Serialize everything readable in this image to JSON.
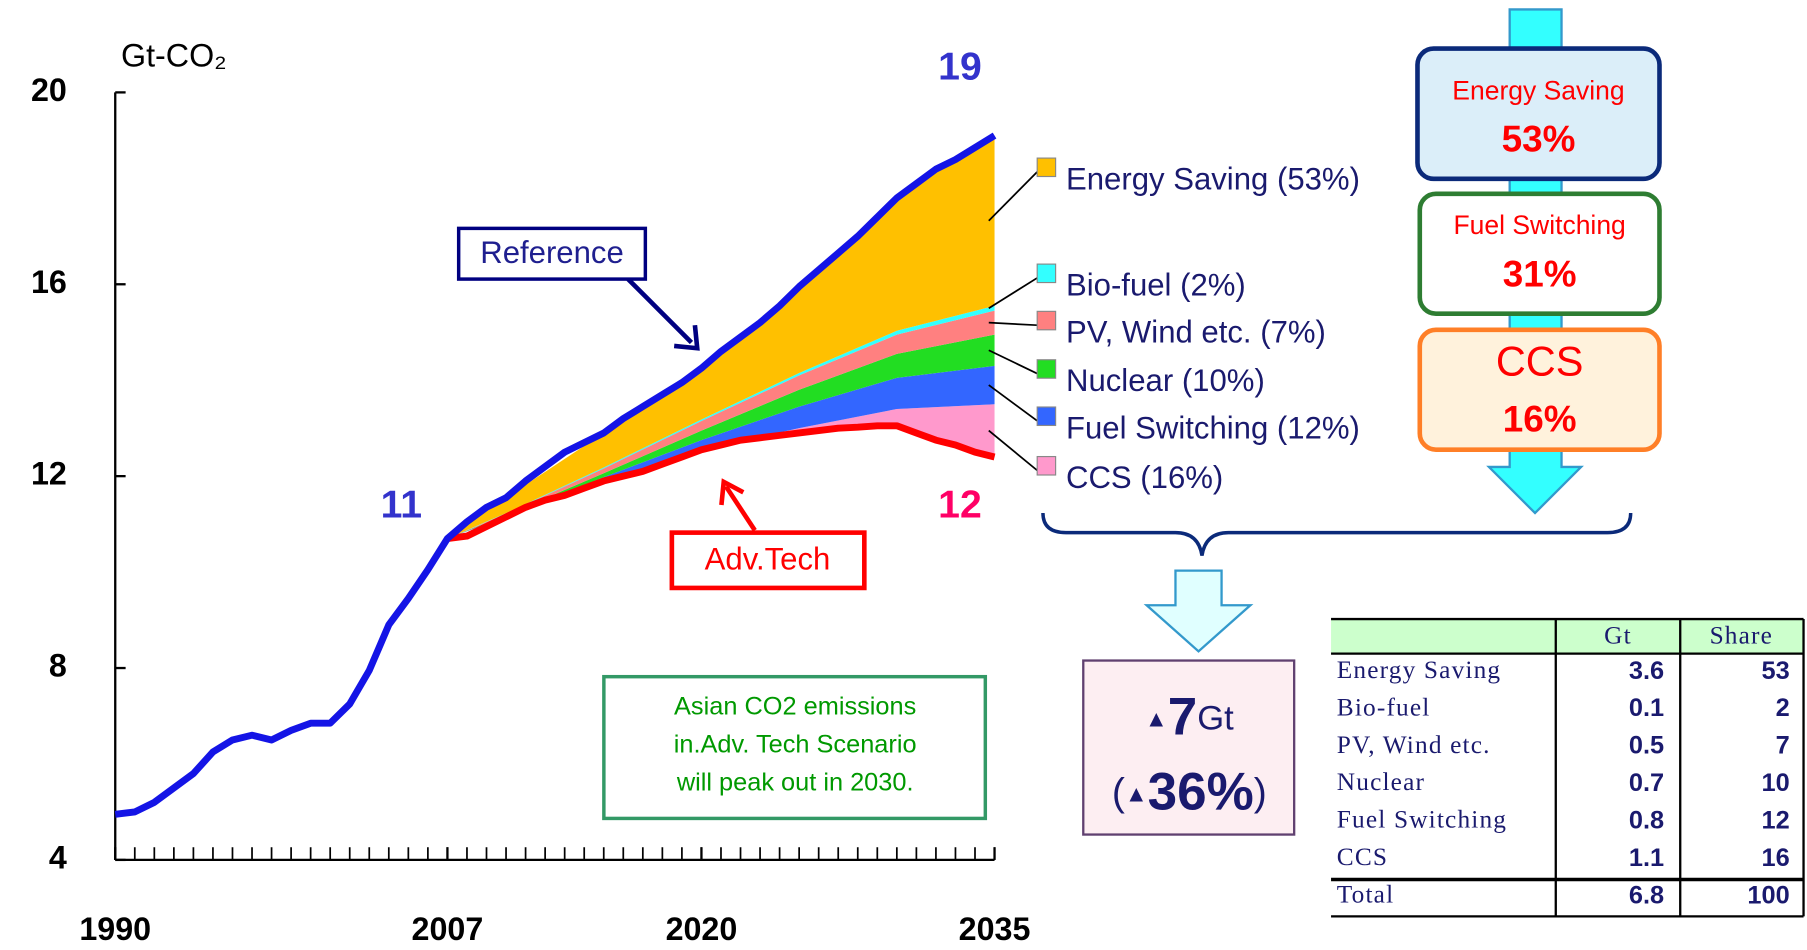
{
  "chart_data": {
    "type": "line",
    "y_label": "Gt-CO₂",
    "xlim": [
      1990,
      2035
    ],
    "xticks": [
      1990,
      2007,
      2020,
      2035
    ],
    "ylim": [
      4,
      20
    ],
    "yticks": [
      4,
      8,
      12,
      16,
      20
    ],
    "series": [
      {
        "name": "Reference",
        "color": "#1414e6",
        "x": [
          1990,
          1991,
          1992,
          1993,
          1994,
          1995,
          1996,
          1997,
          1998,
          1999,
          2000,
          2001,
          2002,
          2003,
          2004,
          2005,
          2006,
          2007,
          2008,
          2009,
          2010,
          2011,
          2012,
          2013,
          2014,
          2015,
          2016,
          2017,
          2018,
          2019,
          2020,
          2021,
          2022,
          2023,
          2024,
          2025,
          2026,
          2027,
          2028,
          2029,
          2030,
          2031,
          2032,
          2033,
          2034,
          2035
        ],
        "values": [
          4.95,
          5.0,
          5.2,
          5.5,
          5.8,
          6.25,
          6.5,
          6.6,
          6.5,
          6.7,
          6.85,
          6.85,
          7.25,
          7.95,
          8.9,
          9.45,
          10.05,
          10.7,
          11.05,
          11.35,
          11.55,
          11.9,
          12.2,
          12.5,
          12.7,
          12.9,
          13.2,
          13.45,
          13.7,
          13.95,
          14.25,
          14.6,
          14.9,
          15.2,
          15.55,
          15.95,
          16.3,
          16.65,
          17.0,
          17.4,
          17.8,
          18.1,
          18.4,
          18.6,
          18.85,
          19.1
        ]
      },
      {
        "name": "Adv.Tech",
        "color": "#ff0000",
        "x": [
          2007,
          2008,
          2009,
          2010,
          2011,
          2012,
          2013,
          2014,
          2015,
          2016,
          2017,
          2018,
          2019,
          2020,
          2021,
          2022,
          2023,
          2024,
          2025,
          2026,
          2027,
          2028,
          2029,
          2030,
          2031,
          2032,
          2033,
          2034,
          2035
        ],
        "values": [
          10.7,
          10.75,
          10.95,
          11.15,
          11.35,
          11.5,
          11.6,
          11.75,
          11.9,
          12.0,
          12.1,
          12.25,
          12.4,
          12.55,
          12.65,
          12.75,
          12.8,
          12.85,
          12.9,
          12.95,
          13.0,
          13.02,
          13.05,
          13.05,
          12.9,
          12.75,
          12.65,
          12.5,
          12.4
        ]
      }
    ],
    "stack": {
      "x": [
        2007,
        2010,
        2015,
        2020,
        2025,
        2030,
        2035
      ],
      "series": [
        {
          "name": "CCS (16%)",
          "color": "#ff99cc",
          "values": [
            0,
            0,
            0,
            0,
            0.1,
            0.35,
            1.1
          ]
        },
        {
          "name": "Fuel Switching (12%)",
          "color": "#3366ff",
          "values": [
            0,
            0.02,
            0.08,
            0.2,
            0.45,
            0.65,
            0.8
          ]
        },
        {
          "name": "Nuclear (10%)",
          "color": "#22dd22",
          "values": [
            0,
            0.02,
            0.08,
            0.2,
            0.35,
            0.5,
            0.65
          ]
        },
        {
          "name": "PV, Wind etc. (7%)",
          "color": "#ff8080",
          "values": [
            0,
            0.03,
            0.1,
            0.2,
            0.3,
            0.4,
            0.5
          ]
        },
        {
          "name": "Bio-fuel (2%)",
          "color": "#33ffff",
          "values": [
            0,
            0.01,
            0.02,
            0.03,
            0.05,
            0.08,
            0.1
          ]
        },
        {
          "name": "Energy Saving (53%)",
          "color": "#ffc000",
          "values": [
            0,
            0.32,
            0.72,
            1.07,
            1.8,
            2.77,
            3.55
          ]
        }
      ]
    },
    "point_labels": [
      {
        "x": 2007,
        "value": 11,
        "color": "#3333cc"
      },
      {
        "x": 2035,
        "value": 19,
        "color": "#3333cc"
      },
      {
        "x": 2035,
        "value": 12,
        "color": "#ff0066"
      }
    ],
    "annotation": [
      "Asian CO2 emissions",
      "in.Adv. Tech Scenario",
      "will peak out in 2030."
    ]
  },
  "breakdown": [
    {
      "label": "Energy Saving",
      "value": "53%"
    },
    {
      "label": "Fuel Switching",
      "value": "31%"
    },
    {
      "label": "CCS",
      "value": "16%"
    }
  ],
  "reduction": {
    "amount": [
      "▲",
      "7",
      "Gt"
    ],
    "share": [
      "(",
      "▲",
      "36%",
      ")"
    ]
  },
  "table": {
    "header": [
      "Gt",
      "Share"
    ],
    "rows": [
      [
        "Energy Saving",
        3.6,
        53
      ],
      [
        "Bio-fuel",
        0.1,
        2
      ],
      [
        "PV, Wind etc.",
        0.5,
        7
      ],
      [
        "Nuclear",
        0.7,
        10
      ],
      [
        "Fuel Switching",
        0.8,
        12
      ],
      [
        "CCS",
        1.1,
        16
      ],
      [
        "Total",
        6.8,
        100
      ]
    ]
  }
}
